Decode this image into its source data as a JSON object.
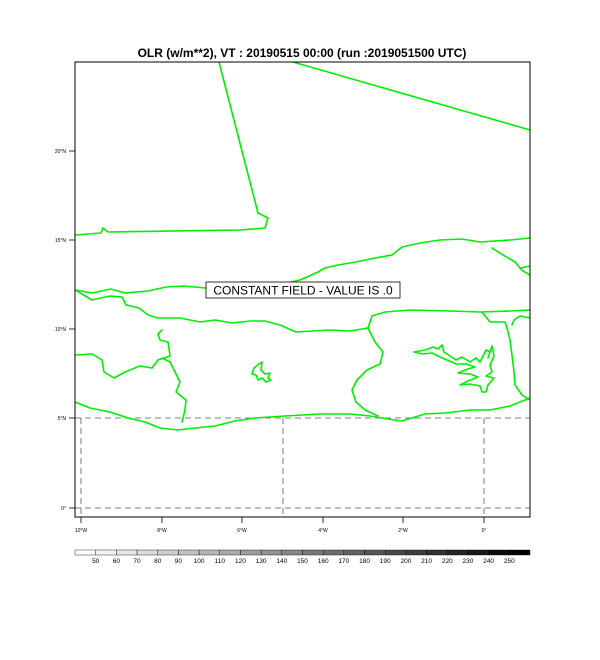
{
  "title": "OLR (w/m**2), VT : 20190515  00:00 (run :2019051500 UTC)",
  "annotation": "CONSTANT FIELD - VALUE IS .0",
  "y_ticks": [
    "20°N",
    "15°N",
    "10°N",
    "5°N",
    "0°"
  ],
  "x_ticks": [
    "10°W",
    "8°W",
    "6°W",
    "4°W",
    "2°W",
    "0°"
  ],
  "colorbar": {
    "labels": [
      "50",
      "60",
      "70",
      "80",
      "90",
      "100",
      "110",
      "120",
      "130",
      "140",
      "150",
      "160",
      "170",
      "180",
      "190",
      "200",
      "210",
      "220",
      "230",
      "240",
      "250"
    ],
    "start_color": "#ffffff",
    "end_color": "#000000"
  },
  "colors": {
    "coastline": "#00ee00",
    "grid": "#555555",
    "frame": "#000000"
  }
}
